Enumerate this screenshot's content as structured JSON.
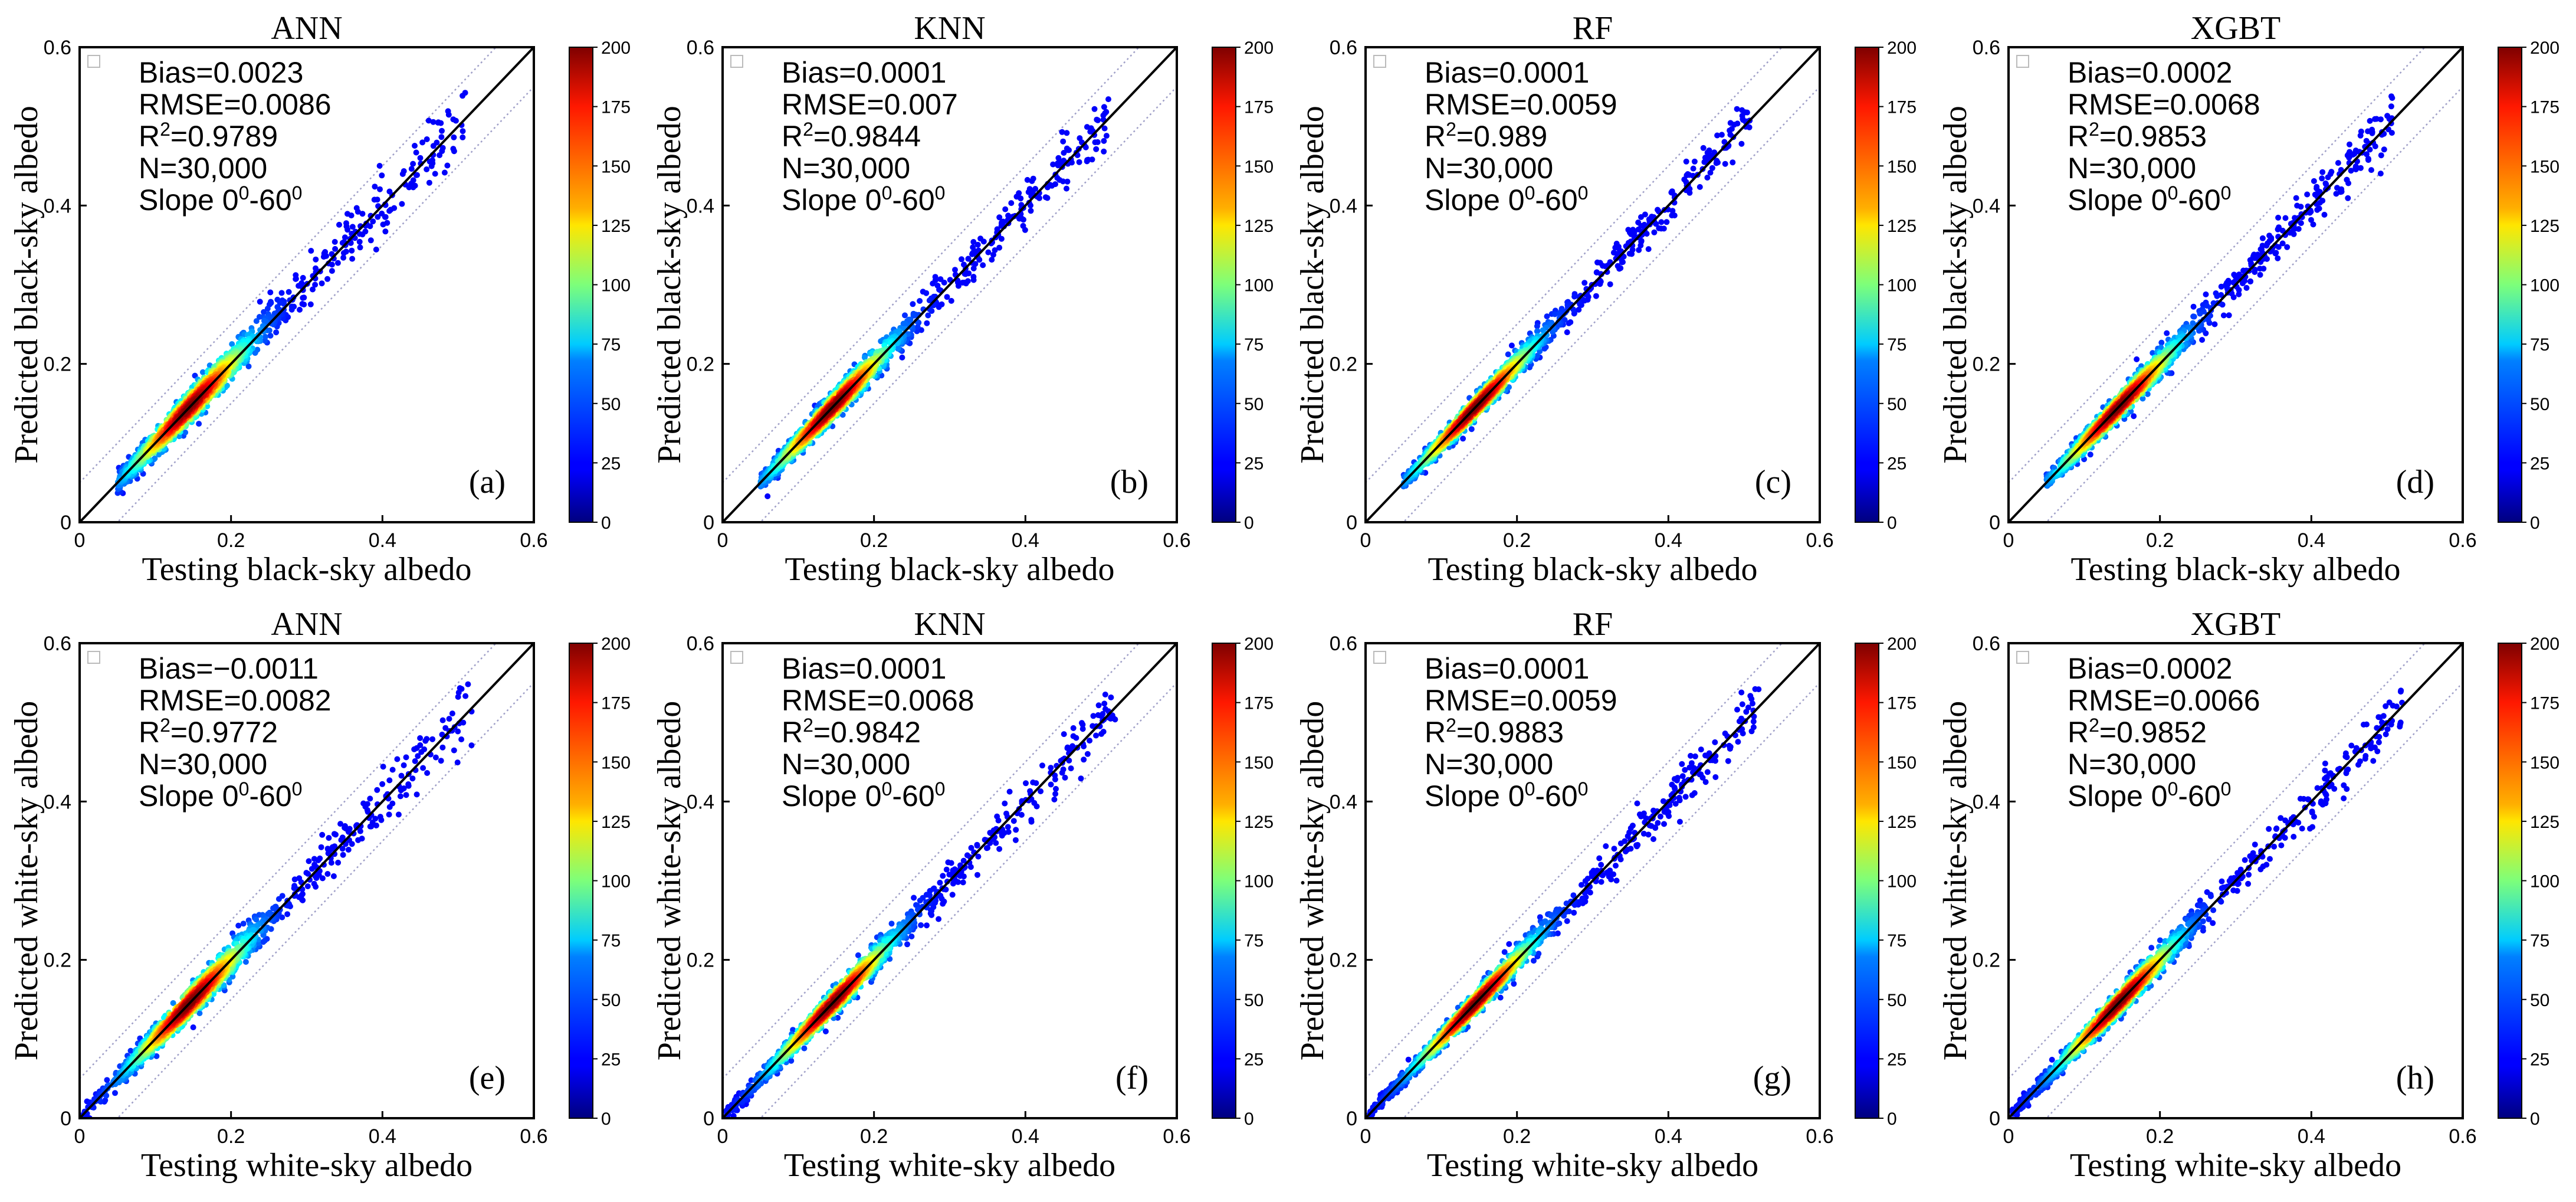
{
  "figure": {
    "colorbar": {
      "ticks": [
        0,
        25,
        50,
        75,
        100,
        125,
        150,
        175,
        200
      ],
      "range": [
        0,
        200
      ],
      "colormap": "jet"
    },
    "colors": {
      "identity_line": "#000000",
      "bound_lines": "#a0a0c8"
    }
  },
  "chart_data": [
    {
      "type": "scatter",
      "panel_label": "(a)",
      "title": "ANN",
      "xlabel": "Testing black-sky albedo",
      "ylabel": "Predicted black-sky albedo",
      "xlim": [
        0,
        0.6
      ],
      "ylim": [
        0,
        0.6
      ],
      "xticks": [
        "0",
        "0.2",
        "0.4",
        "0.6"
      ],
      "yticks": [
        "0",
        "0.2",
        "0.4",
        "0.6"
      ],
      "x_range_data": [
        0.05,
        0.51
      ],
      "spread": 0.012,
      "stats": {
        "bias": "Bias=0.0023",
        "rmse": "RMSE=0.0086",
        "r2_value": "=0.9789",
        "n": "N=30,000"
      }
    },
    {
      "type": "scatter",
      "panel_label": "(b)",
      "title": "KNN",
      "xlabel": "Testing black-sky albedo",
      "ylabel": "Predicted black-sky albedo",
      "xlim": [
        0,
        0.6
      ],
      "ylim": [
        0,
        0.6
      ],
      "xticks": [
        "0",
        "0.2",
        "0.4",
        "0.6"
      ],
      "yticks": [
        "0",
        "0.2",
        "0.4",
        "0.6"
      ],
      "x_range_data": [
        0.05,
        0.51
      ],
      "spread": 0.01,
      "stats": {
        "bias": "Bias=0.0001",
        "rmse": "RMSE=0.007",
        "r2_value": "=0.9844",
        "n": "N=30,000"
      }
    },
    {
      "type": "scatter",
      "panel_label": "(c)",
      "title": "RF",
      "xlabel": "Testing black-sky albedo",
      "ylabel": "Predicted black-sky albedo",
      "xlim": [
        0,
        0.6
      ],
      "ylim": [
        0,
        0.6
      ],
      "xticks": [
        "0",
        "0.2",
        "0.4",
        "0.6"
      ],
      "yticks": [
        "0",
        "0.2",
        "0.4",
        "0.6"
      ],
      "x_range_data": [
        0.05,
        0.51
      ],
      "spread": 0.0085,
      "stats": {
        "bias": "Bias=0.0001",
        "rmse": "RMSE=0.0059",
        "r2_value": "=0.989",
        "n": "N=30,000"
      }
    },
    {
      "type": "scatter",
      "panel_label": "(d)",
      "title": "XGBT",
      "xlabel": "Testing black-sky albedo",
      "ylabel": "Predicted black-sky albedo",
      "xlim": [
        0,
        0.6
      ],
      "ylim": [
        0,
        0.6
      ],
      "xticks": [
        "0",
        "0.2",
        "0.4",
        "0.6"
      ],
      "yticks": [
        "0",
        "0.2",
        "0.4",
        "0.6"
      ],
      "x_range_data": [
        0.05,
        0.51
      ],
      "spread": 0.0095,
      "stats": {
        "bias": "Bias=0.0002",
        "rmse": "RMSE=0.0068",
        "r2_value": "=0.9853",
        "n": "N=30,000"
      }
    },
    {
      "type": "scatter",
      "panel_label": "(e)",
      "title": "ANN",
      "xlabel": "Testing white-sky albedo",
      "ylabel": "Predicted white-sky albedo",
      "xlim": [
        0,
        0.6
      ],
      "ylim": [
        0,
        0.6
      ],
      "xticks": [
        "0",
        "0.2",
        "0.4",
        "0.6"
      ],
      "yticks": [
        "0",
        "0.2",
        "0.4",
        "0.6"
      ],
      "x_range_data": [
        0.005,
        0.52
      ],
      "spread": 0.0115,
      "stats": {
        "bias": "Bias=−0.0011",
        "rmse": "RMSE=0.0082",
        "r2_value": "=0.9772",
        "n": "N=30,000"
      }
    },
    {
      "type": "scatter",
      "panel_label": "(f)",
      "title": "KNN",
      "xlabel": "Testing white-sky albedo",
      "ylabel": "Predicted white-sky albedo",
      "xlim": [
        0,
        0.6
      ],
      "ylim": [
        0,
        0.6
      ],
      "xticks": [
        "0",
        "0.2",
        "0.4",
        "0.6"
      ],
      "yticks": [
        "0",
        "0.2",
        "0.4",
        "0.6"
      ],
      "x_range_data": [
        0.005,
        0.52
      ],
      "spread": 0.0095,
      "stats": {
        "bias": "Bias=0.0001",
        "rmse": "RMSE=0.0068",
        "r2_value": "=0.9842",
        "n": "N=30,000"
      }
    },
    {
      "type": "scatter",
      "panel_label": "(g)",
      "title": "RF",
      "xlabel": "Testing white-sky albedo",
      "ylabel": "Predicted white-sky albedo",
      "xlim": [
        0,
        0.6
      ],
      "ylim": [
        0,
        0.6
      ],
      "xticks": [
        "0",
        "0.2",
        "0.4",
        "0.6"
      ],
      "yticks": [
        "0",
        "0.2",
        "0.4",
        "0.6"
      ],
      "x_range_data": [
        0.005,
        0.52
      ],
      "spread": 0.0085,
      "stats": {
        "bias": "Bias=0.0001",
        "rmse": "RMSE=0.0059",
        "r2_value": "=0.9883",
        "n": "N=30,000"
      }
    },
    {
      "type": "scatter",
      "panel_label": "(h)",
      "title": "XGBT",
      "xlabel": "Testing white-sky albedo",
      "ylabel": "Predicted white-sky albedo",
      "xlim": [
        0,
        0.6
      ],
      "ylim": [
        0,
        0.6
      ],
      "xticks": [
        "0",
        "0.2",
        "0.4",
        "0.6"
      ],
      "yticks": [
        "0",
        "0.2",
        "0.4",
        "0.6"
      ],
      "x_range_data": [
        0.005,
        0.52
      ],
      "spread": 0.0092,
      "stats": {
        "bias": "Bias=0.0002",
        "rmse": "RMSE=0.0066",
        "r2_value": "=0.9852",
        "n": "N=30,000"
      }
    }
  ],
  "stat_prefix": {
    "r2": "R",
    "r2_sup": "2",
    "slope": "Slope 0",
    "slope_sup1": "0",
    "slope_mid": "-60",
    "slope_sup2": "0"
  }
}
